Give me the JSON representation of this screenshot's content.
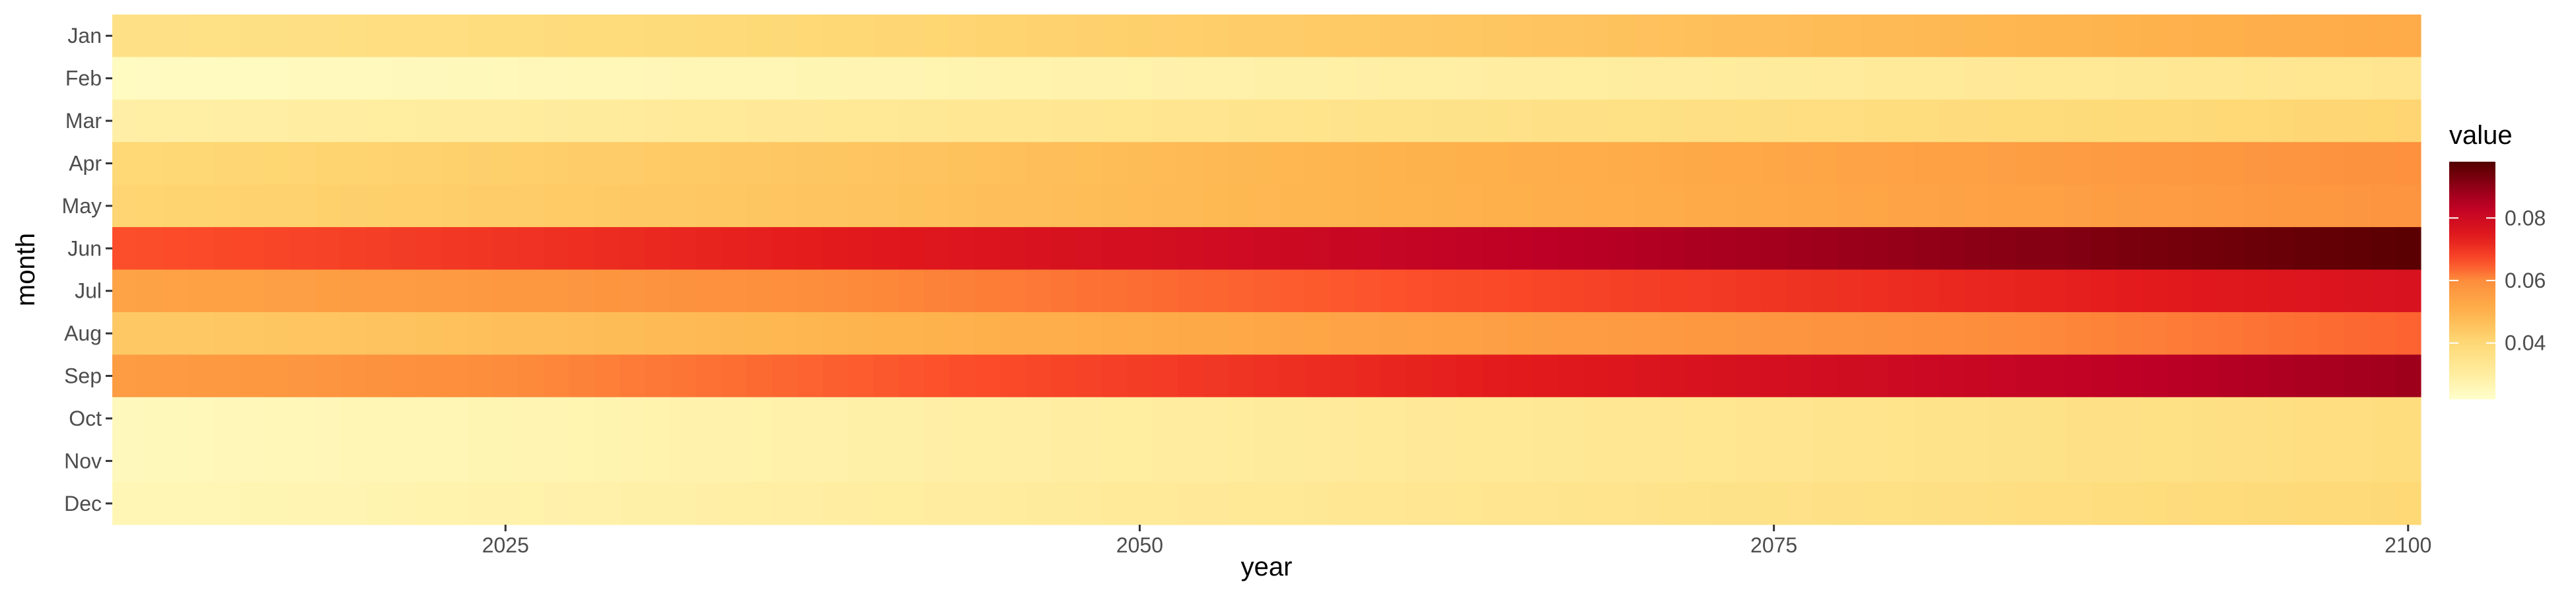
{
  "chart_data": {
    "type": "heatmap",
    "xlabel": "year",
    "ylabel": "month",
    "x_range": [
      2010,
      2100
    ],
    "x_ticks": [
      2025,
      2050,
      2075,
      2100
    ],
    "y_categories": [
      "Jan",
      "Feb",
      "Mar",
      "Apr",
      "May",
      "Jun",
      "Jul",
      "Aug",
      "Sep",
      "Oct",
      "Nov",
      "Dec"
    ],
    "value_range": [
      0.022,
      0.098
    ],
    "legend": {
      "title": "value",
      "ticks": [
        0.04,
        0.06,
        0.08
      ],
      "placement": "right"
    },
    "color_scale": {
      "name": "YlOrRd",
      "stops": [
        {
          "value": 0.022,
          "color": "#ffffcc"
        },
        {
          "value": 0.03,
          "color": "#ffeda0"
        },
        {
          "value": 0.04,
          "color": "#fed976"
        },
        {
          "value": 0.05,
          "color": "#feb24c"
        },
        {
          "value": 0.06,
          "color": "#fd8d3c"
        },
        {
          "value": 0.066,
          "color": "#fc4e2a"
        },
        {
          "value": 0.074,
          "color": "#e31a1c"
        },
        {
          "value": 0.084,
          "color": "#bd0026"
        },
        {
          "value": 0.098,
          "color": "#520000"
        }
      ]
    },
    "series": [
      {
        "month": "Jan",
        "value_2010": 0.036,
        "value_2100": 0.052
      },
      {
        "month": "Feb",
        "value_2010": 0.024,
        "value_2100": 0.034
      },
      {
        "month": "Mar",
        "value_2010": 0.029,
        "value_2100": 0.041
      },
      {
        "month": "Apr",
        "value_2010": 0.04,
        "value_2100": 0.059
      },
      {
        "month": "May",
        "value_2010": 0.041,
        "value_2100": 0.058
      },
      {
        "month": "Jun",
        "value_2010": 0.066,
        "value_2100": 0.097
      },
      {
        "month": "Jul",
        "value_2010": 0.054,
        "value_2100": 0.077
      },
      {
        "month": "Aug",
        "value_2010": 0.044,
        "value_2100": 0.064
      },
      {
        "month": "Sep",
        "value_2010": 0.056,
        "value_2100": 0.088
      },
      {
        "month": "Oct",
        "value_2010": 0.025,
        "value_2100": 0.038
      },
      {
        "month": "Nov",
        "value_2010": 0.025,
        "value_2100": 0.038
      },
      {
        "month": "Dec",
        "value_2010": 0.026,
        "value_2100": 0.04
      }
    ]
  }
}
